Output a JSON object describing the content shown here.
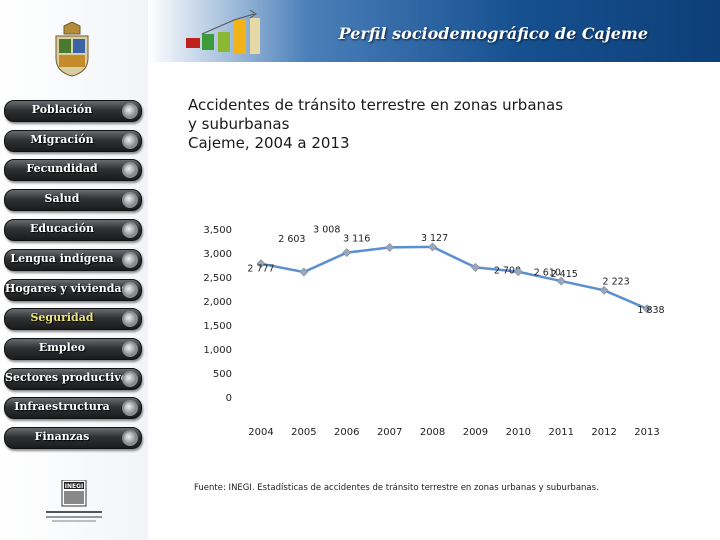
{
  "header": {
    "title": "Perfil sociodemográfico de Cajeme"
  },
  "nav": {
    "items": [
      {
        "label": "Población"
      },
      {
        "label": "Migración"
      },
      {
        "label": "Fecundidad"
      },
      {
        "label": "Salud"
      },
      {
        "label": "Educación"
      },
      {
        "label": "Lengua indígena"
      },
      {
        "label": "Hogares y viviendas"
      },
      {
        "label": "Seguridad"
      },
      {
        "label": "Empleo"
      },
      {
        "label": "Sectores productivos"
      },
      {
        "label": "Infraestructura"
      },
      {
        "label": "Finanzas"
      }
    ]
  },
  "colors": {
    "line": "#5b8fcf",
    "marker": "#9aa7b8",
    "header": "#16508f",
    "active": "#e9e47a"
  },
  "chart_data": {
    "type": "line",
    "title_lines": [
      "Accidentes de tránsito terrestre en zonas urbanas",
      "y suburbanas",
      "Cajeme, 2004 a 2013"
    ],
    "categories": [
      "2004",
      "2005",
      "2006",
      "2007",
      "2008",
      "2009",
      "2010",
      "2011",
      "2012",
      "2013"
    ],
    "values": [
      2777,
      2603,
      3008,
      3116,
      3127,
      2700,
      2610,
      2415,
      2223,
      1838
    ],
    "value_labels": [
      "2 777",
      "2 603",
      "3 008",
      "3 116",
      "3 127",
      "2 700",
      "2 610",
      "2 415",
      "2 223",
      "1 838"
    ],
    "y_ticks": [
      0,
      500,
      1000,
      1500,
      2000,
      2500,
      3000,
      3500
    ],
    "y_tick_labels": [
      "0",
      "500",
      "1,000",
      "1,500",
      "2,000",
      "2,500",
      "3,000",
      "3,500"
    ],
    "ylim": [
      0,
      3500
    ],
    "xlabel": "",
    "ylabel": "",
    "legend": "none"
  },
  "source": "Fuente: INEGI. Estadísticas de accidentes de tránsito terrestre en zonas urbanas y suburbanas.",
  "logos": {
    "inegi": "INEGI"
  }
}
